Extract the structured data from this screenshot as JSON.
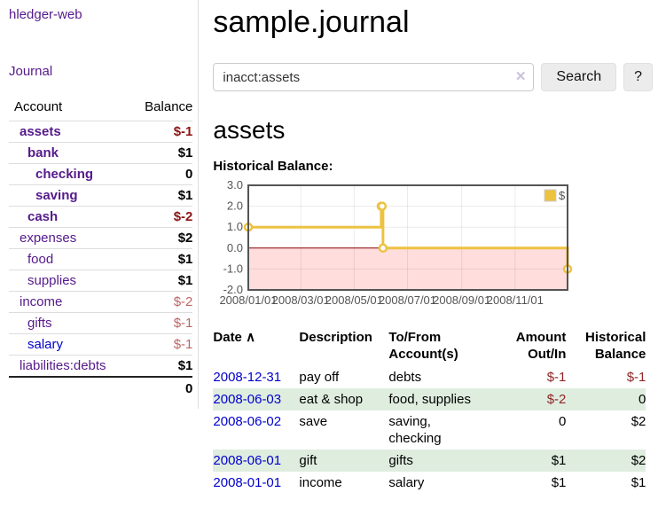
{
  "colors": {
    "link_purple": "#551a8b",
    "link_blue": "#0000cc",
    "negative_strong": "#8b1414",
    "negative_light": "#bb6666",
    "negative_table": "#8f2525",
    "row_stripe_green": "#dfeddf",
    "chart_series_yellow": "#edc240",
    "chart_negative_region": "#ffdddd",
    "chart_zero_line": "#8b0000"
  },
  "sidebar": {
    "app_title": "hledger-web",
    "nav": {
      "journal_label": "Journal"
    },
    "table_headers": {
      "account": "Account",
      "balance": "Balance"
    },
    "accounts": [
      {
        "name": "assets",
        "depth": 0,
        "row_cls": "emph",
        "balance": "$-1",
        "balance_cls": "neg-strong",
        "name_cls": ""
      },
      {
        "name": "bank",
        "depth": 1,
        "row_cls": "emph",
        "balance": "$1",
        "balance_cls": "",
        "name_cls": ""
      },
      {
        "name": "checking",
        "depth": 2,
        "row_cls": "emph",
        "balance": "0",
        "balance_cls": "",
        "name_cls": ""
      },
      {
        "name": "saving",
        "depth": 2,
        "row_cls": "emph",
        "balance": "$1",
        "balance_cls": "",
        "name_cls": ""
      },
      {
        "name": "cash",
        "depth": 1,
        "row_cls": "emph",
        "balance": "$-2",
        "balance_cls": "neg-strong",
        "name_cls": ""
      },
      {
        "name": "expenses",
        "depth": 0,
        "row_cls": "",
        "balance": "$2",
        "balance_cls": "",
        "name_cls": ""
      },
      {
        "name": "food",
        "depth": 1,
        "row_cls": "",
        "balance": "$1",
        "balance_cls": "",
        "name_cls": ""
      },
      {
        "name": "supplies",
        "depth": 1,
        "row_cls": "",
        "balance": "$1",
        "balance_cls": "",
        "name_cls": ""
      },
      {
        "name": "income",
        "depth": 0,
        "row_cls": "",
        "balance": "$-2",
        "balance_cls": "neg-light",
        "name_cls": ""
      },
      {
        "name": "gifts",
        "depth": 1,
        "row_cls": "",
        "balance": "$-1",
        "balance_cls": "neg-light",
        "name_cls": ""
      },
      {
        "name": "salary",
        "depth": 1,
        "row_cls": "",
        "balance": "$-1",
        "balance_cls": "neg-light",
        "name_cls": "blue"
      },
      {
        "name": "liabilities:debts",
        "depth": 0,
        "row_cls": "",
        "balance": "$1",
        "balance_cls": "",
        "name_cls": ""
      }
    ],
    "total": "0"
  },
  "main": {
    "title": "sample.journal",
    "search": {
      "value": "inacct:assets",
      "clear_icon": "✕",
      "button_label": "Search",
      "help_label": "?"
    },
    "account_heading": "assets",
    "chart_heading": "Historical Balance:"
  },
  "chart_data": {
    "type": "line",
    "steps": true,
    "title": "Historical Balance:",
    "series": [
      {
        "name": "$",
        "color": "#edc240",
        "points": [
          [
            "2008-01-01",
            1
          ],
          [
            "2008-06-01",
            2
          ],
          [
            "2008-06-02",
            2
          ],
          [
            "2008-06-03",
            0
          ],
          [
            "2008-12-31",
            -1
          ]
        ]
      }
    ],
    "x_ticks": [
      "2008/01/01",
      "2008/03/01",
      "2008/05/01",
      "2008/07/01",
      "2008/09/01",
      "2008/11/01"
    ],
    "y_ticks": [
      "3.0",
      "2.0",
      "1.0",
      "0.0",
      "-1.0",
      "-2.0"
    ],
    "xlim": [
      "2008-01-01",
      "2008-12-31"
    ],
    "ylim": [
      -2,
      3
    ],
    "legend": "$",
    "legend_position": "top-right",
    "grid": true,
    "negative_region_color": "#ffdddd",
    "zero_line_color": "#8b0000"
  },
  "register": {
    "headers": {
      "date": "Date",
      "sort_icon": "∧",
      "description": "Description",
      "accounts": "To/From Account(s)",
      "amount": "Amount Out/In",
      "balance": "Historical Balance"
    },
    "rows": [
      {
        "date": "2008-12-31",
        "description": "pay off",
        "accounts": "debts",
        "amount": "$-1",
        "amount_cls": "neg",
        "balance": "$-1",
        "balance_cls": "neg"
      },
      {
        "date": "2008-06-03",
        "description": "eat & shop",
        "accounts": "food, supplies",
        "amount": "$-2",
        "amount_cls": "neg",
        "balance": "0",
        "balance_cls": ""
      },
      {
        "date": "2008-06-02",
        "description": "save",
        "accounts": "saving,\nchecking",
        "amount": "0",
        "amount_cls": "",
        "balance": "$2",
        "balance_cls": ""
      },
      {
        "date": "2008-06-01",
        "description": "gift",
        "accounts": "gifts",
        "amount": "$1",
        "amount_cls": "",
        "balance": "$2",
        "balance_cls": ""
      },
      {
        "date": "2008-01-01",
        "description": "income",
        "accounts": "salary",
        "amount": "$1",
        "amount_cls": "",
        "balance": "$1",
        "balance_cls": ""
      }
    ]
  }
}
